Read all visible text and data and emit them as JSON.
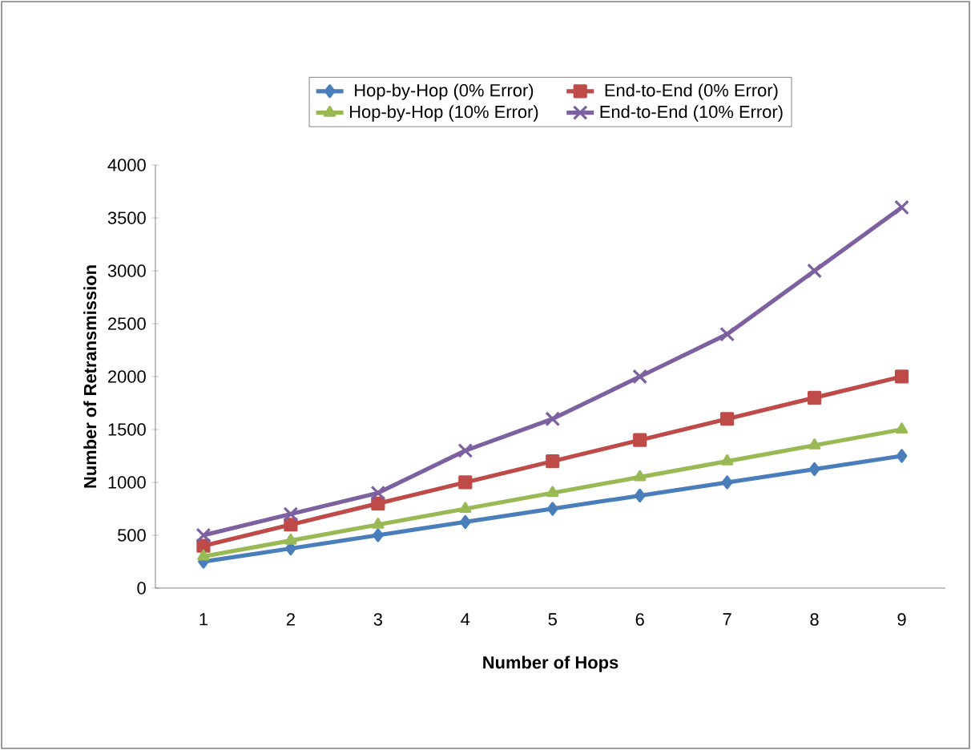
{
  "chart_data": {
    "type": "line",
    "xlabel": "Number of Hops",
    "ylabel": "Number of Retransmission",
    "categories": [
      "1",
      "2",
      "3",
      "4",
      "5",
      "6",
      "7",
      "8",
      "9"
    ],
    "series": [
      {
        "name": "Hop-by-Hop (0% Error)",
        "color": "#4a7ebb",
        "marker": "diamond",
        "values": [
          250,
          375,
          500,
          625,
          750,
          875,
          1000,
          1125,
          1250
        ]
      },
      {
        "name": "End-to-End (0% Error)",
        "color": "#be4b48",
        "marker": "square",
        "values": [
          400,
          600,
          800,
          1000,
          1200,
          1400,
          1600,
          1800,
          2000
        ]
      },
      {
        "name": "Hop-by-Hop (10% Error)",
        "color": "#98b954",
        "marker": "triangle",
        "values": [
          300,
          450,
          600,
          750,
          900,
          1050,
          1200,
          1350,
          1500
        ]
      },
      {
        "name": "End-to-End (10% Error)",
        "color": "#7d60a0",
        "marker": "cross",
        "values": [
          500,
          700,
          900,
          1300,
          1600,
          2000,
          2400,
          3000,
          3600
        ]
      }
    ],
    "ylim": [
      0,
      4000
    ],
    "yticks": [
      0,
      500,
      1000,
      1500,
      2000,
      2500,
      3000,
      3500,
      4000
    ],
    "grid": false,
    "legend": "top",
    "line_style": "solid"
  }
}
